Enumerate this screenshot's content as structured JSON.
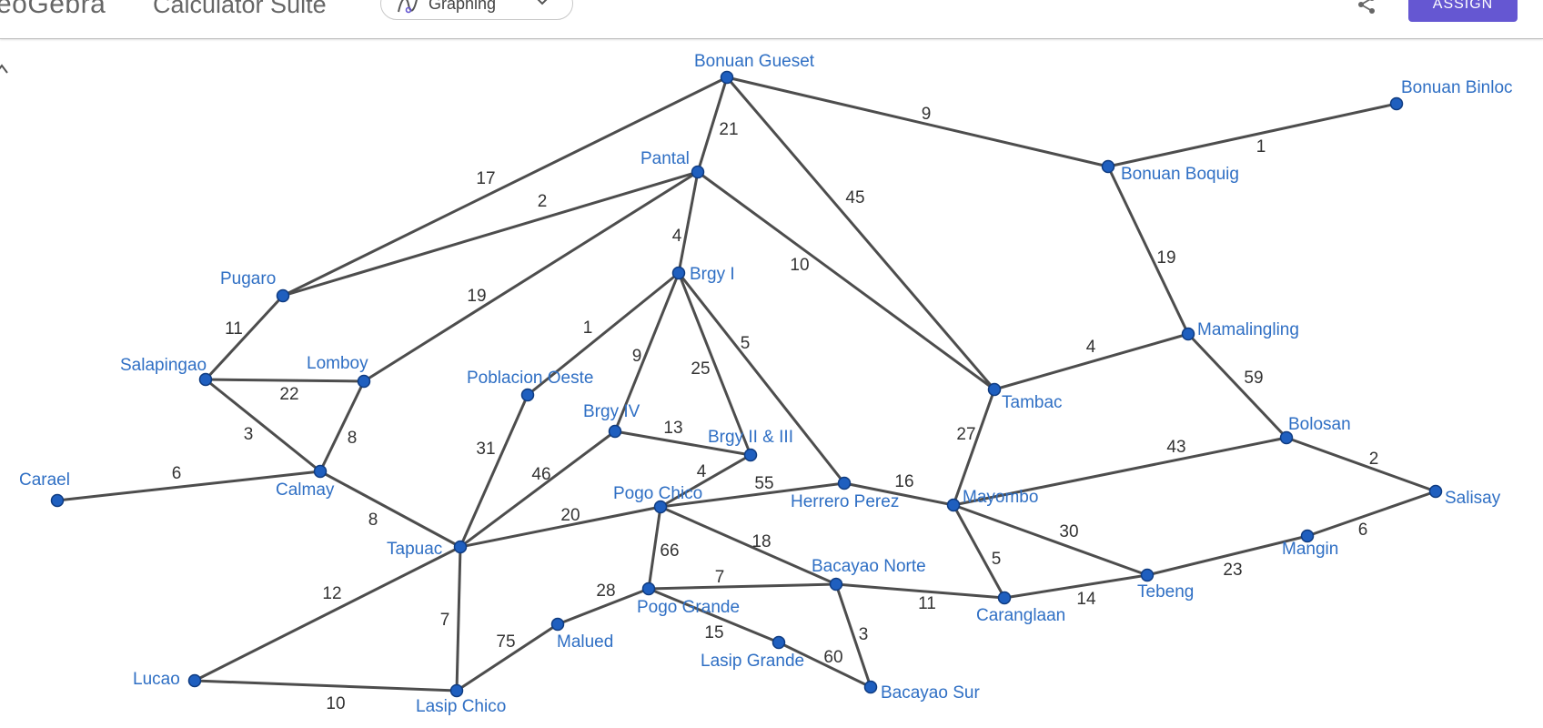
{
  "header": {
    "logo": "eoGebra",
    "app_title": "Calculator Suite",
    "app_select": "Graphing",
    "assign": "ASSIGN"
  },
  "icons": {
    "app_icon": "graphing-icon",
    "dropdown": "chevron-down-icon",
    "share": "share-icon",
    "back": "back-arrow-icon"
  },
  "colors": {
    "accent": "#6557d2",
    "node": "#1f5fbf",
    "vertex_label": "#2f6fc4",
    "edge": "#4d4d4d"
  },
  "graph": {
    "vertices": [
      {
        "id": "bonuan_gueset",
        "label": "Bonuan Gueset"
      },
      {
        "id": "bonuan_binloc",
        "label": "Bonuan Binloc"
      },
      {
        "id": "pantal",
        "label": "Pantal"
      },
      {
        "id": "bonuan_boquig",
        "label": "Bonuan Boquig"
      },
      {
        "id": "pugaro",
        "label": "Pugaro"
      },
      {
        "id": "brgy_i",
        "label": "Brgy I"
      },
      {
        "id": "mamalingling",
        "label": "Mamalingling"
      },
      {
        "id": "salapingao",
        "label": "Salapingao"
      },
      {
        "id": "lomboy",
        "label": "Lomboy"
      },
      {
        "id": "poblacion_oeste",
        "label": "Poblacion Oeste"
      },
      {
        "id": "tambac",
        "label": "Tambac"
      },
      {
        "id": "brgy_iv",
        "label": "Brgy IV"
      },
      {
        "id": "brgy_ii_iii",
        "label": "Brgy II & III"
      },
      {
        "id": "bolosan",
        "label": "Bolosan"
      },
      {
        "id": "carael",
        "label": "Carael"
      },
      {
        "id": "calmay",
        "label": "Calmay"
      },
      {
        "id": "herrero_perez",
        "label": "Herrero Perez"
      },
      {
        "id": "pogo_chico",
        "label": "Pogo Chico"
      },
      {
        "id": "mayombo",
        "label": "Mayombo"
      },
      {
        "id": "salisay",
        "label": "Salisay"
      },
      {
        "id": "tapuac",
        "label": "Tapuac"
      },
      {
        "id": "mangin",
        "label": "Mangin"
      },
      {
        "id": "tebeng",
        "label": "Tebeng"
      },
      {
        "id": "bacayao_norte",
        "label": "Bacayao Norte"
      },
      {
        "id": "pogo_grande",
        "label": "Pogo Grande"
      },
      {
        "id": "caranglaan",
        "label": "Caranglaan"
      },
      {
        "id": "malued",
        "label": "Malued"
      },
      {
        "id": "lasip_grande",
        "label": "Lasip Grande"
      },
      {
        "id": "lucao",
        "label": "Lucao"
      },
      {
        "id": "bacayao_sur",
        "label": "Bacayao Sur"
      },
      {
        "id": "lasip_chico",
        "label": "Lasip Chico"
      }
    ],
    "edges": [
      {
        "from": "bonuan_gueset",
        "to": "pantal",
        "weight": "21"
      },
      {
        "from": "bonuan_gueset",
        "to": "bonuan_boquig",
        "weight": "9"
      },
      {
        "from": "bonuan_gueset",
        "to": "pugaro",
        "weight": "17"
      },
      {
        "from": "bonuan_gueset",
        "to": "tambac",
        "weight": "45"
      },
      {
        "from": "bonuan_binloc",
        "to": "bonuan_boquig",
        "weight": "1"
      },
      {
        "from": "bonuan_boquig",
        "to": "mamalingling",
        "weight": "19"
      },
      {
        "from": "pantal",
        "to": "pugaro",
        "weight": "2"
      },
      {
        "from": "pantal",
        "to": "brgy_i",
        "weight": "4"
      },
      {
        "from": "pantal",
        "to": "lomboy",
        "weight": "19"
      },
      {
        "from": "pantal",
        "to": "tambac",
        "weight": "10"
      },
      {
        "from": "pugaro",
        "to": "salapingao",
        "weight": "11"
      },
      {
        "from": "salapingao",
        "to": "lomboy",
        "weight": "22"
      },
      {
        "from": "salapingao",
        "to": "calmay",
        "weight": "3"
      },
      {
        "from": "lomboy",
        "to": "calmay",
        "weight": "8"
      },
      {
        "from": "carael",
        "to": "calmay",
        "weight": "6"
      },
      {
        "from": "calmay",
        "to": "tapuac",
        "weight": "8"
      },
      {
        "from": "brgy_i",
        "to": "poblacion_oeste",
        "weight": "1"
      },
      {
        "from": "brgy_i",
        "to": "brgy_iv",
        "weight": "9"
      },
      {
        "from": "brgy_i",
        "to": "brgy_ii_iii",
        "weight": "25"
      },
      {
        "from": "brgy_i",
        "to": "herrero_perez",
        "weight": "5"
      },
      {
        "from": "poblacion_oeste",
        "to": "tapuac",
        "weight": "31"
      },
      {
        "from": "brgy_iv",
        "to": "brgy_ii_iii",
        "weight": "13"
      },
      {
        "from": "brgy_iv",
        "to": "tapuac",
        "weight": "46"
      },
      {
        "from": "brgy_ii_iii",
        "to": "pogo_chico",
        "weight": "4"
      },
      {
        "from": "pogo_chico",
        "to": "herrero_perez",
        "weight": "55"
      },
      {
        "from": "pogo_chico",
        "to": "tapuac",
        "weight": "20"
      },
      {
        "from": "pogo_chico",
        "to": "pogo_grande",
        "weight": "66"
      },
      {
        "from": "pogo_chico",
        "to": "bacayao_norte",
        "weight": "18"
      },
      {
        "from": "herrero_perez",
        "to": "mayombo",
        "weight": "16"
      },
      {
        "from": "tambac",
        "to": "mamalingling",
        "weight": "4"
      },
      {
        "from": "tambac",
        "to": "mayombo",
        "weight": "27"
      },
      {
        "from": "mamalingling",
        "to": "bolosan",
        "weight": "59"
      },
      {
        "from": "mayombo",
        "to": "bolosan",
        "weight": "43"
      },
      {
        "from": "bolosan",
        "to": "salisay",
        "weight": "2"
      },
      {
        "from": "salisay",
        "to": "mangin",
        "weight": "6"
      },
      {
        "from": "mangin",
        "to": "tebeng",
        "weight": "23"
      },
      {
        "from": "mayombo",
        "to": "tebeng",
        "weight": "30"
      },
      {
        "from": "mayombo",
        "to": "caranglaan",
        "weight": "5"
      },
      {
        "from": "caranglaan",
        "to": "tebeng",
        "weight": "14"
      },
      {
        "from": "bacayao_norte",
        "to": "caranglaan",
        "weight": "11"
      },
      {
        "from": "pogo_grande",
        "to": "bacayao_norte",
        "weight": "7"
      },
      {
        "from": "bacayao_norte",
        "to": "bacayao_sur",
        "weight": "3"
      },
      {
        "from": "pogo_grande",
        "to": "malued",
        "weight": "28"
      },
      {
        "from": "pogo_grande",
        "to": "lasip_grande",
        "weight": "15"
      },
      {
        "from": "lasip_grande",
        "to": "bacayao_sur",
        "weight": "60"
      },
      {
        "from": "malued",
        "to": "lasip_chico",
        "weight": "75"
      },
      {
        "from": "tapuac",
        "to": "lucao",
        "weight": "12"
      },
      {
        "from": "tapuac",
        "to": "lasip_chico",
        "weight": "7"
      },
      {
        "from": "lucao",
        "to": "lasip_chico",
        "weight": "10"
      }
    ]
  }
}
